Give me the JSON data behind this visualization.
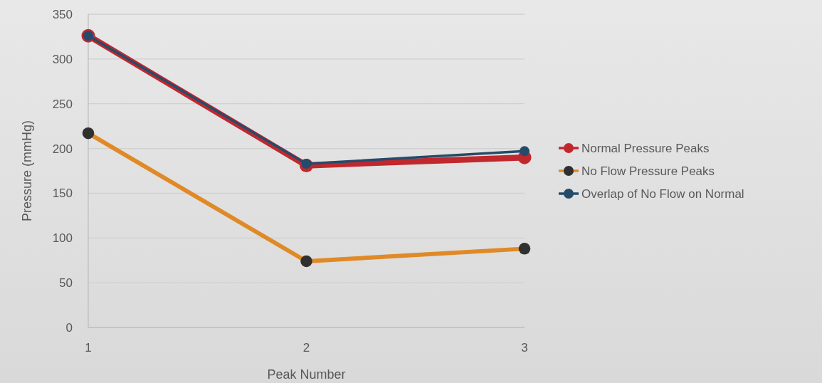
{
  "chart_data": {
    "type": "line",
    "xlabel": "Peak Number",
    "ylabel": "Pressure (mmHg)",
    "x": [
      1,
      2,
      3
    ],
    "xlim": [
      1,
      3
    ],
    "xticks": [
      1,
      2,
      3
    ],
    "ylim": [
      0,
      350
    ],
    "yticks": [
      0,
      50,
      100,
      150,
      200,
      250,
      300,
      350
    ],
    "grid": "y",
    "legend": "right",
    "marker": "circle",
    "line_style": "solid",
    "series": [
      {
        "name": "Normal Pressure Peaks",
        "color": "#c0282e",
        "values": [
          326,
          181,
          190
        ]
      },
      {
        "name": "No Flow Pressure Peaks",
        "color": "#e08a27",
        "colors": [
          "#303030",
          "#303030",
          "#303030"
        ],
        "values": [
          217,
          74,
          88
        ]
      },
      {
        "name": "Overlap of No Flow on Normal",
        "color": "#264b6a",
        "values": [
          326,
          183,
          197
        ]
      }
    ]
  }
}
